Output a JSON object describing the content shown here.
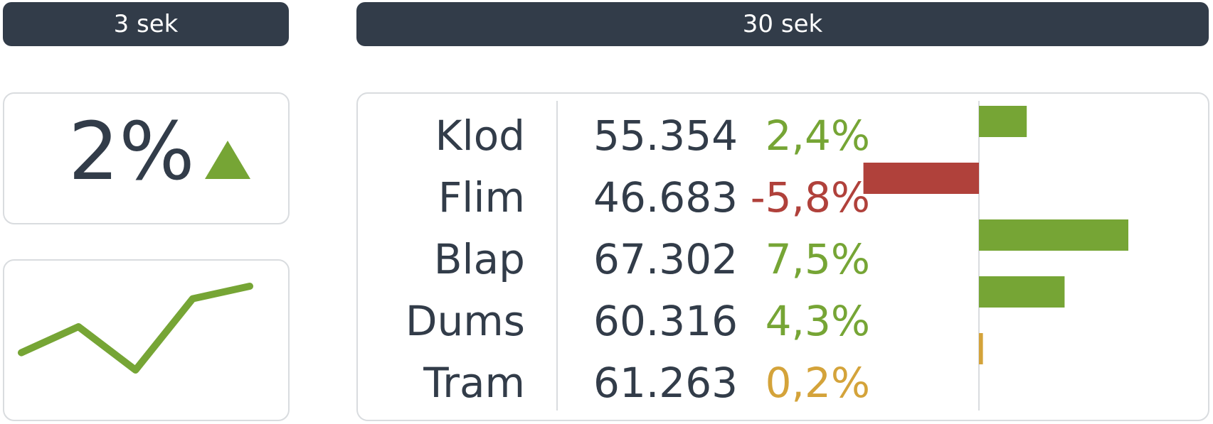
{
  "headers": {
    "left": "3 sek",
    "right": "30 sek"
  },
  "kpi": {
    "value": "2%",
    "trend": "up",
    "trend_icon": "triangle-up-icon",
    "trend_color": "#76a535"
  },
  "sparkline": {
    "values": [
      2.4,
      5.1,
      0.6,
      8.0,
      9.3
    ],
    "color": "#76a535"
  },
  "colors": {
    "text": "#323c49",
    "header_bg": "#323c49",
    "positive": "#76a535",
    "negative": "#b0413b",
    "neutral": "#d4a33a",
    "border": "#d9dcdf"
  },
  "table": {
    "rows": [
      {
        "name": "Klod",
        "value": "55.354",
        "change_label": "2,4%",
        "change": 2.4,
        "status": "positive"
      },
      {
        "name": "Flim",
        "value": "46.683",
        "change_label": "-5,8%",
        "change": -5.8,
        "status": "negative"
      },
      {
        "name": "Blap",
        "value": "67.302",
        "change_label": "7,5%",
        "change": 7.5,
        "status": "positive"
      },
      {
        "name": "Dums",
        "value": "60.316",
        "change_label": "4,3%",
        "change": 4.3,
        "status": "positive"
      },
      {
        "name": "Tram",
        "value": "61.263",
        "change_label": "0,2%",
        "change": 0.2,
        "status": "neutral"
      }
    ]
  }
}
